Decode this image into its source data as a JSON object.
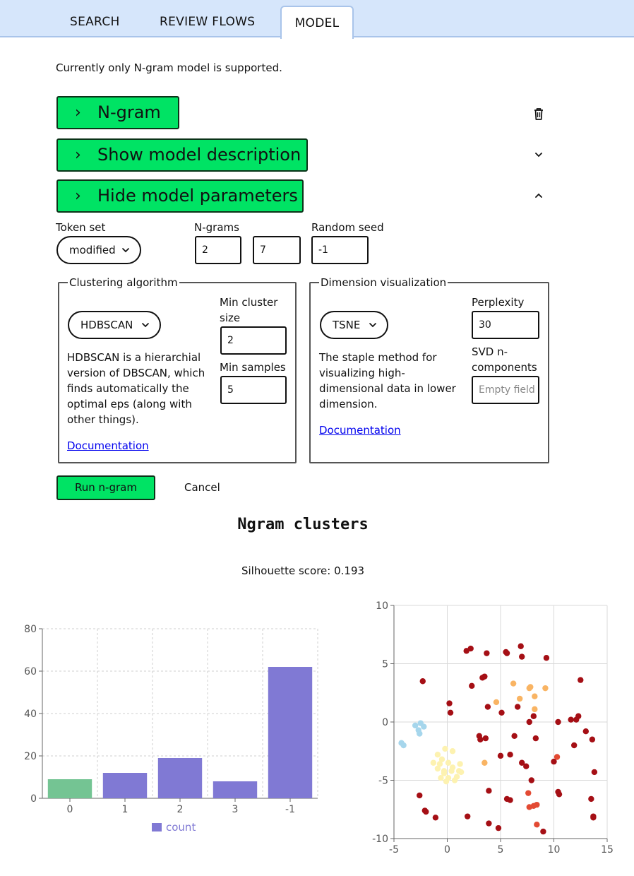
{
  "tabs": {
    "search": "SEARCH",
    "review_flows": "REVIEW FLOWS",
    "model": "MODEL"
  },
  "intro": "Currently only N-gram model is supported.",
  "accordions": {
    "ngram": "N-gram",
    "description": "Show model description",
    "parameters": "Hide model parameters"
  },
  "params": {
    "token_set": {
      "label": "Token set",
      "value": "modified"
    },
    "ngrams": {
      "label": "N-grams",
      "min": "2",
      "max": "7"
    },
    "random_seed": {
      "label": "Random seed",
      "value": "-1"
    }
  },
  "clustering": {
    "legend": "Clustering algorithm",
    "algorithm": "HDBSCAN",
    "description": [
      "HDBSCAN is a hierarchial",
      "version of DBSCAN, which",
      "finds automatically the",
      "optimal eps (along with",
      "other things)."
    ],
    "min_cluster_size_label": [
      "Min cluster",
      "size"
    ],
    "min_cluster_size": "2",
    "min_samples_label": "Min samples",
    "min_samples": "5",
    "doc_link": "Documentation"
  },
  "dimension": {
    "legend": "Dimension visualization",
    "method": "TSNE",
    "description": [
      "The staple method for",
      "visualizing high-",
      "dimensional data in lower",
      "dimension."
    ],
    "perplexity_label": "Perplexity",
    "perplexity": "30",
    "svd_label": [
      "SVD n-",
      "components"
    ],
    "svd_placeholder": "Empty field",
    "doc_link": "Documentation"
  },
  "actions": {
    "run": "Run n-gram",
    "cancel": "Cancel"
  },
  "results": {
    "title": "Ngram clusters",
    "silhouette": "Silhouette score: 0.193"
  },
  "icons": {
    "delete": "trash-icon",
    "collapse": "chevron-down-icon",
    "expand": "chevron-up-icon",
    "accordion": "chevron-right-icon"
  },
  "chart_data": [
    {
      "type": "bar",
      "categories": [
        "0",
        "1",
        "2",
        "3",
        "-1"
      ],
      "series": [
        {
          "name": "count",
          "values": [
            9,
            12,
            19,
            8,
            62
          ]
        }
      ],
      "colors": [
        "#74c493",
        "#8079d4",
        "#8079d4",
        "#8079d4",
        "#8079d4"
      ],
      "ylim": [
        0,
        80
      ],
      "yticks": [
        0,
        20,
        40,
        60,
        80
      ],
      "grid": true,
      "legend": "bottom"
    },
    {
      "type": "scatter",
      "xlim": [
        -5,
        15
      ],
      "ylim": [
        -10,
        10
      ],
      "xticks": [
        -5,
        0,
        5,
        10,
        15
      ],
      "yticks": [
        -10,
        -5,
        0,
        5,
        10
      ],
      "grid": true,
      "series": [
        {
          "color": "#a50f15",
          "points": [
            [
              1.8,
              6.1
            ],
            [
              2.2,
              6.3
            ],
            [
              3.7,
              5.9
            ],
            [
              5.5,
              6.0
            ],
            [
              5.6,
              5.9
            ],
            [
              6.9,
              6.5
            ],
            [
              7.0,
              5.6
            ],
            [
              9.3,
              5.5
            ],
            [
              -2.3,
              3.5
            ],
            [
              3.3,
              3.8
            ],
            [
              3.5,
              3.9
            ],
            [
              2.3,
              3.1
            ],
            [
              0.2,
              1.6
            ],
            [
              0.3,
              0.8
            ],
            [
              3.8,
              1.3
            ],
            [
              5.1,
              0.8
            ],
            [
              6.6,
              1.3
            ],
            [
              8.1,
              0.5
            ],
            [
              7.7,
              -0.0
            ],
            [
              10.4,
              -0.0
            ],
            [
              11.6,
              0.2
            ],
            [
              12.1,
              0.2
            ],
            [
              12.3,
              0.5
            ],
            [
              13.0,
              -0.8
            ],
            [
              13.6,
              -1.5
            ],
            [
              11.9,
              -2.0
            ],
            [
              3.0,
              -1.2
            ],
            [
              3.1,
              -1.5
            ],
            [
              3.6,
              -1.4
            ],
            [
              6.3,
              -1.2
            ],
            [
              8.3,
              -1.4
            ],
            [
              5.0,
              -2.9
            ],
            [
              5.9,
              -2.8
            ],
            [
              7.0,
              -3.5
            ],
            [
              7.4,
              -3.8
            ],
            [
              10.0,
              -3.4
            ],
            [
              13.8,
              -4.3
            ],
            [
              7.9,
              -5.0
            ],
            [
              3.9,
              -5.9
            ],
            [
              10.4,
              -6.0
            ],
            [
              10.5,
              -6.2
            ],
            [
              13.5,
              -6.6
            ],
            [
              5.6,
              -6.6
            ],
            [
              5.9,
              -6.7
            ],
            [
              -2.6,
              -6.3
            ],
            [
              -2.1,
              -7.6
            ],
            [
              -2.0,
              -7.7
            ],
            [
              -1.1,
              -8.2
            ],
            [
              1.9,
              -8.1
            ],
            [
              3.9,
              -8.7
            ],
            [
              4.8,
              -9.1
            ],
            [
              9.0,
              -9.4
            ],
            [
              13.7,
              -8.1
            ],
            [
              13.7,
              -8.2
            ],
            [
              12.5,
              3.6
            ]
          ]
        },
        {
          "color": "#e34a33",
          "points": [
            [
              8.4,
              -7.1
            ],
            [
              8.1,
              -7.2
            ],
            [
              7.7,
              -7.3
            ],
            [
              7.6,
              -6.1
            ],
            [
              8.4,
              -8.8
            ],
            [
              10.3,
              -3.0
            ]
          ]
        },
        {
          "color": "#f9b463",
          "points": [
            [
              6.2,
              3.3
            ],
            [
              7.7,
              2.9
            ],
            [
              7.8,
              3.0
            ],
            [
              9.2,
              2.9
            ],
            [
              6.8,
              2.0
            ],
            [
              8.2,
              2.2
            ],
            [
              4.6,
              1.7
            ],
            [
              8.2,
              1.1
            ],
            [
              3.5,
              -3.5
            ]
          ]
        },
        {
          "color": "#fdf2b0",
          "points": [
            [
              -0.9,
              -2.8
            ],
            [
              -0.2,
              -2.3
            ],
            [
              0.5,
              -2.5
            ],
            [
              -1.3,
              -3.5
            ],
            [
              -0.5,
              -3.2
            ],
            [
              -0.7,
              -3.6
            ],
            [
              0.1,
              -3.5
            ],
            [
              0.5,
              -3.9
            ],
            [
              1.2,
              -3.6
            ],
            [
              -0.9,
              -4.0
            ],
            [
              -0.3,
              -4.2
            ],
            [
              0.4,
              -4.2
            ],
            [
              1.1,
              -4.2
            ],
            [
              -0.3,
              -4.4
            ],
            [
              1.3,
              -4.3
            ],
            [
              -0.6,
              -4.8
            ],
            [
              0.1,
              -4.8
            ],
            [
              0.9,
              -4.7
            ],
            [
              -0.1,
              -5.1
            ],
            [
              0.7,
              -5.0
            ]
          ]
        },
        {
          "color": "#a6d6ec",
          "points": [
            [
              -3.0,
              -0.3
            ],
            [
              -2.5,
              -0.1
            ],
            [
              -2.2,
              -0.4
            ],
            [
              -2.7,
              -0.7
            ],
            [
              -2.6,
              -1.0
            ],
            [
              -4.3,
              -1.8
            ],
            [
              -4.1,
              -2.0
            ]
          ]
        }
      ]
    }
  ]
}
